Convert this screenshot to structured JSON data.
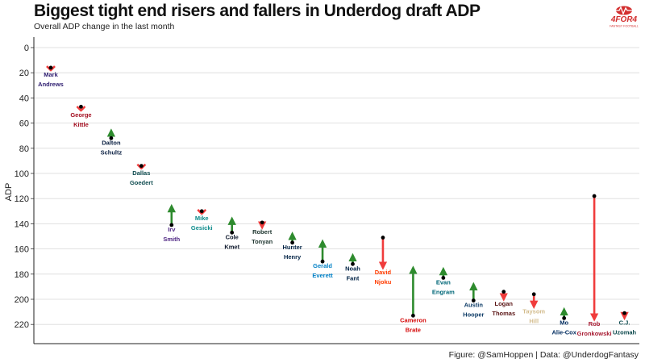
{
  "title": "Biggest tight end risers and fallers in Underdog draft ADP",
  "subtitle": "Overall ADP change in the last month",
  "caption": "Figure: @SamHoppen | Data: @UnderdogFantasy",
  "logo": {
    "brand": "4FOR4",
    "tagline": "FANTASY FOOTBALL",
    "icon": "football-heartbeat-icon",
    "color": "#d32f2f"
  },
  "colors": {
    "riser": "#2e8b2e",
    "faller": "#f03c3c",
    "grid": "#d9d9d9",
    "point": "#000000"
  },
  "chart_data": {
    "type": "arrow-dot",
    "ylabel": "ADP",
    "yaxis_reversed": true,
    "ylim": [
      -5,
      236
    ],
    "yticks": [
      0,
      20,
      40,
      60,
      80,
      100,
      120,
      140,
      160,
      180,
      200,
      220
    ],
    "grid": true,
    "players": [
      {
        "first": "Mark",
        "last": "Andrews",
        "from": 16,
        "to": 18,
        "color": "#2b1a6e"
      },
      {
        "first": "George",
        "last": "Kittle",
        "from": 47,
        "to": 50,
        "color": "#a30d1f"
      },
      {
        "first": "Dalton",
        "last": "Schultz",
        "from": 72,
        "to": 66,
        "color": "#0b2042"
      },
      {
        "first": "Dallas",
        "last": "Goedert",
        "from": 94,
        "to": 96,
        "color": "#0d4a4e"
      },
      {
        "first": "Irv",
        "last": "Smith",
        "from": 141,
        "to": 126,
        "color": "#4f2683"
      },
      {
        "first": "Mike",
        "last": "Gesicki",
        "from": 130,
        "to": 132,
        "color": "#0b8a8a"
      },
      {
        "first": "Cole",
        "last": "Kmet",
        "from": 147,
        "to": 136,
        "color": "#0b162a"
      },
      {
        "first": "Robert",
        "last": "Tonyan",
        "from": 139,
        "to": 143,
        "color": "#203731"
      },
      {
        "first": "Hunter",
        "last": "Henry",
        "from": 155,
        "to": 148,
        "color": "#002244"
      },
      {
        "first": "Gerald",
        "last": "Everett",
        "from": 170,
        "to": 154,
        "color": "#0080c6"
      },
      {
        "first": "Noah",
        "last": "Fant",
        "from": 172,
        "to": 165,
        "color": "#002244"
      },
      {
        "first": "David",
        "last": "Njoku",
        "from": 151,
        "to": 175,
        "color": "#ff3c00"
      },
      {
        "first": "Cameron",
        "last": "Brate",
        "from": 213,
        "to": 175,
        "color": "#d50a0a"
      },
      {
        "first": "Evan",
        "last": "Engram",
        "from": 183,
        "to": 176,
        "color": "#006778"
      },
      {
        "first": "Austin",
        "last": "Hooper",
        "from": 201,
        "to": 188,
        "color": "#0d3b66"
      },
      {
        "first": "Logan",
        "last": "Thomas",
        "from": 194,
        "to": 200,
        "color": "#5a1414"
      },
      {
        "first": "Taysom",
        "last": "Hill",
        "from": 196,
        "to": 206,
        "color": "#d3bc8d"
      },
      {
        "first": "Mo",
        "last": "Alie-Cox",
        "from": 215,
        "to": 208,
        "color": "#002c5f"
      },
      {
        "first": "Rob",
        "last": "Gronkowski",
        "from": 118,
        "to": 216,
        "color": "#a71930"
      },
      {
        "first": "C.J.",
        "last": "Uzomah",
        "from": 211,
        "to": 215,
        "color": "#0d4a4e"
      }
    ]
  }
}
